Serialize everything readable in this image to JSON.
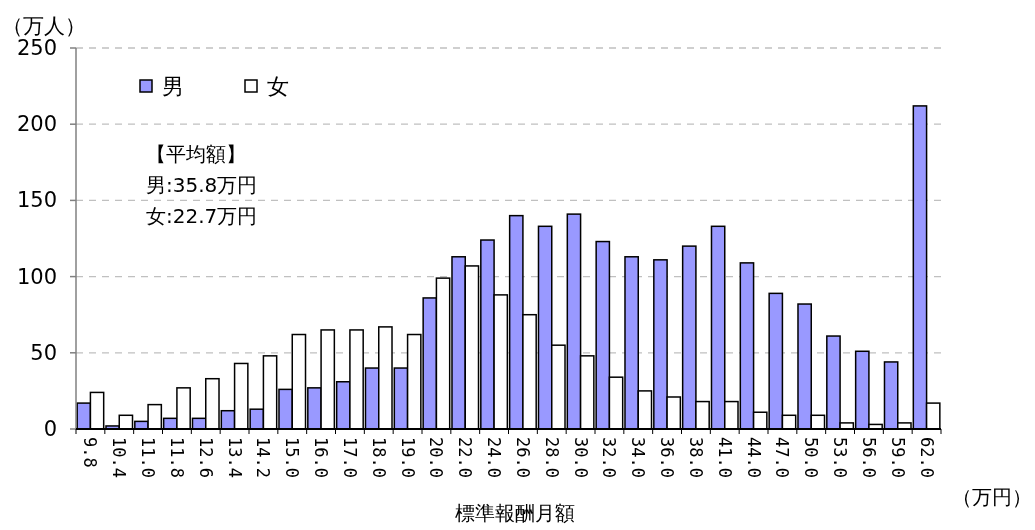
{
  "chart_data": {
    "type": "bar",
    "xlabel": "標準報酬月額",
    "ylabel": "（万人）",
    "categories": [
      "9.8",
      "10.4",
      "11.0",
      "11.8",
      "12.6",
      "13.4",
      "14.2",
      "15.0",
      "16.0",
      "17.0",
      "18.0",
      "19.0",
      "20.0",
      "22.0",
      "24.0",
      "26.0",
      "28.0",
      "30.0",
      "32.0",
      "34.0",
      "36.0",
      "38.0",
      "41.0",
      "44.0",
      "47.0",
      "50.0",
      "53.0",
      "56.0",
      "59.0",
      "62.0"
    ],
    "series": [
      {
        "name": "男",
        "color": "#9999ff",
        "values": [
          17,
          2,
          5,
          7,
          7,
          12,
          13,
          26,
          27,
          31,
          40,
          40,
          86,
          113,
          124,
          140,
          133,
          141,
          123,
          113,
          111,
          120,
          133,
          109,
          89,
          82,
          61,
          51,
          44,
          212
        ]
      },
      {
        "name": "女",
        "color": "#ffffff",
        "values": [
          24,
          9,
          16,
          27,
          33,
          43,
          48,
          62,
          65,
          65,
          67,
          62,
          99,
          107,
          88,
          75,
          55,
          48,
          34,
          25,
          21,
          18,
          18,
          11,
          9,
          9,
          4,
          3,
          4,
          17
        ]
      }
    ],
    "ylim": [
      0,
      250
    ],
    "yticks": [
      0,
      50,
      100,
      150,
      200,
      250
    ],
    "grid": "y",
    "legend": "top left",
    "annotations": [
      "【平均額】",
      "男:35.8万円",
      "女:22.7万円",
      "（万円）"
    ]
  }
}
